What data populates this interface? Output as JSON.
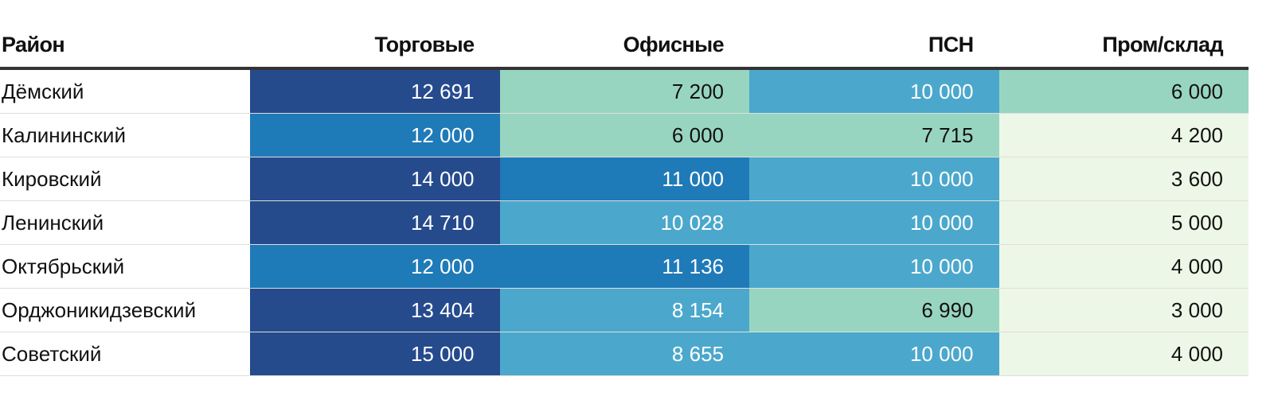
{
  "colors": {
    "very_high": "#264b8d",
    "high": "#1f7ab8",
    "medium": "#4ba8cc",
    "low": "#98d5c1",
    "very_low": "#edf7e7",
    "text_dark": "#111111",
    "text_light": "#ffffff"
  },
  "chart_data": {
    "type": "heatmap",
    "title": "",
    "row_header": "Район",
    "columns": [
      "Торговые",
      "Офисные",
      "ПСН",
      "Пром/склад"
    ],
    "rows": [
      {
        "name": "Дёмский",
        "labels": [
          "12 691",
          "7 200",
          "10 000",
          "6 000"
        ],
        "values": [
          12691,
          7200,
          10000,
          6000
        ]
      },
      {
        "name": "Калининский",
        "labels": [
          "12 000",
          "6 000",
          "7 715",
          "4 200"
        ],
        "values": [
          12000,
          6000,
          7715,
          4200
        ]
      },
      {
        "name": "Кировский",
        "labels": [
          "14 000",
          "11 000",
          "10 000",
          "3 600"
        ],
        "values": [
          14000,
          11000,
          10000,
          3600
        ]
      },
      {
        "name": "Ленинский",
        "labels": [
          "14 710",
          "10 028",
          "10 000",
          "5 000"
        ],
        "values": [
          14710,
          10028,
          10000,
          5000
        ]
      },
      {
        "name": "Октябрьский",
        "labels": [
          "12 000",
          "11 136",
          "10 000",
          "4 000"
        ],
        "values": [
          12000,
          11136,
          10000,
          4000
        ]
      },
      {
        "name": "Орджоникидзевский",
        "labels": [
          "13 404",
          "8 154",
          "6 990",
          "3 000"
        ],
        "values": [
          13404,
          8154,
          6990,
          3000
        ]
      },
      {
        "name": "Советский",
        "labels": [
          "15 000",
          "8 655",
          "10 000",
          "4 000"
        ],
        "values": [
          15000,
          8655,
          10000,
          4000
        ]
      }
    ]
  }
}
